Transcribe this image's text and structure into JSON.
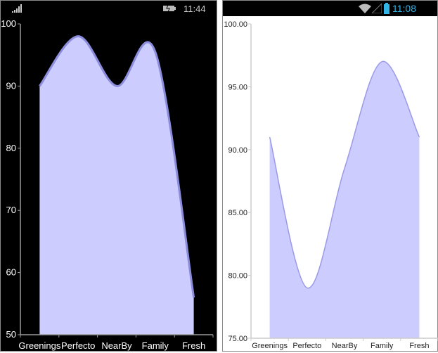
{
  "left_phone": {
    "status": {
      "time": "11:44",
      "icons": [
        "signal-bars-icon",
        "battery-charging-icon"
      ]
    }
  },
  "right_phone": {
    "status": {
      "time": "11:08",
      "icons": [
        "wifi-icon",
        "cell-signal-icon",
        "battery-icon"
      ]
    }
  },
  "chart_data": [
    {
      "type": "area",
      "style": "spline",
      "theme": "dark",
      "categories": [
        "Greenings",
        "Perfecto",
        "NearBy",
        "Family",
        "Fresh"
      ],
      "values": [
        90,
        98,
        90,
        95.5,
        56
      ],
      "ylim": [
        50,
        100
      ],
      "yticks": [
        "50",
        "60",
        "70",
        "80",
        "90",
        "100"
      ],
      "fill": "#CCCCFF",
      "stroke": "#8C8CDC"
    },
    {
      "type": "area",
      "style": "spline",
      "theme": "light",
      "categories": [
        "Greenings",
        "Perfecto",
        "NearBy",
        "Family",
        "Fresh"
      ],
      "values": [
        91,
        79,
        88.5,
        97,
        91
      ],
      "ylim": [
        75,
        100
      ],
      "yticks": [
        "75.00",
        "80.00",
        "85.00",
        "90.00",
        "95.00",
        "100.00"
      ],
      "fill": "#CCCCFF",
      "stroke": "#9A9AE6"
    }
  ]
}
